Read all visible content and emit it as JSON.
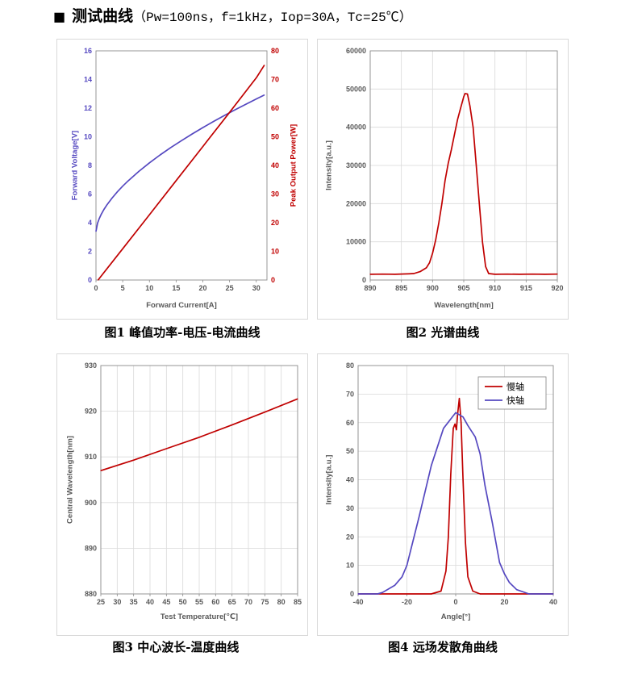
{
  "header": {
    "bullet": "■",
    "title": "测试曲线",
    "params": "（Pw=100ns，f=1kHz，Iop=30A，Tc=25℃）"
  },
  "captions": [
    "图1 峰值功率-电压-电流曲线",
    "图2 光谱曲线",
    "图3 中心波长-温度曲线",
    "图4 远场发散角曲线"
  ],
  "chart_data": [
    {
      "type": "line",
      "grid": false,
      "xlabel": "Forward Current[A]",
      "ylabel": "Forward Voltage[V]",
      "y2label": "Peak Output Power[W]",
      "xlim": [
        0,
        32
      ],
      "ylim": [
        0,
        16
      ],
      "y2lim": [
        0,
        80
      ],
      "xticks": [
        0,
        5,
        10,
        15,
        20,
        25,
        30
      ],
      "yticks": [
        0,
        2,
        4,
        6,
        8,
        10,
        12,
        14,
        16
      ],
      "y2ticks": [
        0,
        10,
        20,
        30,
        40,
        50,
        60,
        70,
        80
      ],
      "ycolor": "#5548c0",
      "y2color": "#c00000",
      "series": [
        {
          "axis": "left",
          "color": "#5548c0",
          "x": [
            0,
            0.3,
            0.6,
            1,
            1.5,
            2,
            3,
            4,
            5,
            6,
            8,
            10,
            12,
            14,
            16,
            18,
            20,
            22,
            24,
            26,
            28,
            30,
            31.5
          ],
          "y": [
            3.4,
            3.98,
            4.28,
            4.6,
            4.93,
            5.22,
            5.72,
            6.16,
            6.55,
            6.92,
            7.58,
            8.18,
            8.73,
            9.25,
            9.73,
            10.2,
            10.64,
            11.07,
            11.48,
            11.88,
            12.26,
            12.64,
            12.92
          ]
        },
        {
          "axis": "right",
          "color": "#c00000",
          "x": [
            0.4,
            5,
            10,
            15,
            20,
            25,
            30,
            31.5
          ],
          "y": [
            0,
            10.9,
            22.8,
            34.7,
            46.6,
            58.5,
            70.6,
            75.0
          ]
        }
      ]
    },
    {
      "type": "line",
      "grid": true,
      "xlabel": "Wavelength[nm]",
      "ylabel": "Intensity[a.u.]",
      "xlim": [
        890,
        920
      ],
      "ylim": [
        0,
        60000
      ],
      "xticks": [
        890,
        895,
        900,
        905,
        910,
        915,
        920
      ],
      "yticks": [
        0,
        10000,
        20000,
        30000,
        40000,
        50000,
        60000
      ],
      "series": [
        {
          "color": "#c00000",
          "x": [
            890,
            892,
            894,
            896,
            897,
            898,
            899,
            899.5,
            900,
            900.5,
            901,
            901.5,
            902,
            902.5,
            903,
            903.5,
            904,
            904.5,
            905,
            905.2,
            905.6,
            906,
            906.5,
            907,
            907.5,
            908,
            908.5,
            909,
            910,
            912,
            914,
            916,
            918,
            920
          ],
          "y": [
            1500,
            1550,
            1500,
            1600,
            1700,
            2200,
            3200,
            4500,
            7000,
            10500,
            15000,
            20000,
            26000,
            30500,
            34000,
            38000,
            42000,
            45000,
            48000,
            48800,
            48700,
            45500,
            40000,
            30000,
            20000,
            10000,
            3500,
            1700,
            1500,
            1550,
            1500,
            1550,
            1500,
            1550
          ]
        }
      ]
    },
    {
      "type": "line",
      "grid": true,
      "xlabel": "Test Temperature[℃]",
      "ylabel": "Central Wavelength[nm]",
      "xlim": [
        25,
        85
      ],
      "ylim": [
        880,
        930
      ],
      "xticks": [
        25,
        30,
        35,
        40,
        45,
        50,
        55,
        60,
        65,
        70,
        75,
        80,
        85
      ],
      "yticks": [
        880,
        890,
        900,
        910,
        920,
        930
      ],
      "series": [
        {
          "color": "#c00000",
          "x": [
            25,
            35,
            45,
            55,
            65,
            75,
            85
          ],
          "y": [
            907.0,
            909.3,
            911.8,
            914.3,
            917.0,
            919.8,
            922.7
          ]
        }
      ]
    },
    {
      "type": "line",
      "grid": true,
      "xlabel": "Angle[°]",
      "ylabel": "Intensity[a.u.]",
      "xlim": [
        -40,
        40
      ],
      "ylim": [
        0,
        80
      ],
      "xticks": [
        -40,
        -20,
        0,
        20,
        40
      ],
      "yticks": [
        0,
        10,
        20,
        30,
        40,
        50,
        60,
        70,
        80
      ],
      "legend": "top-right",
      "series": [
        {
          "name": "慢轴",
          "color": "#c00000",
          "x": [
            -40,
            -10,
            -6,
            -4,
            -3,
            -2,
            -1,
            -0.3,
            0.3,
            0.8,
            1.5,
            2.2,
            3,
            4,
            5,
            7,
            10,
            40
          ],
          "y": [
            0,
            0,
            1,
            8,
            20,
            42,
            58,
            59.5,
            57.5,
            63,
            68.5,
            60,
            40,
            18,
            6,
            1,
            0,
            0
          ]
        },
        {
          "name": "快轴",
          "color": "#5548c0",
          "x": [
            -40,
            -32,
            -30,
            -25,
            -22,
            -20,
            -15,
            -10,
            -5,
            0,
            3,
            5,
            8,
            10,
            12,
            15,
            18,
            20,
            22,
            25,
            30,
            40
          ],
          "y": [
            0,
            0,
            0.5,
            3,
            6,
            10,
            27,
            45,
            58,
            63.5,
            62,
            59,
            55,
            49,
            38,
            25,
            11,
            7,
            4,
            1.5,
            0,
            0
          ]
        }
      ]
    }
  ]
}
